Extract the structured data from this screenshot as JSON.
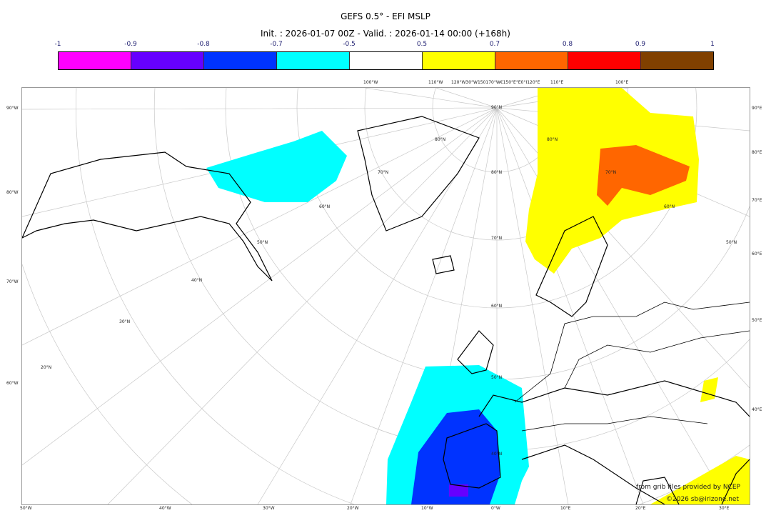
{
  "title": "GEFS 0.5° - EFI MSLP",
  "subtitle": "Init. : 2026-01-07 00Z - Valid. : 2026-01-14 00:00 (+168h)",
  "colorbar": {
    "ticks": [
      "-1",
      "-0.9",
      "-0.8",
      "-0.7",
      "-0.5",
      "0.5",
      "0.7",
      "0.8",
      "0.9",
      "1"
    ],
    "colors": [
      "#ff00ff",
      "#6600ff",
      "#0033ff",
      "#00ffff",
      "#ffffff",
      "#ffff00",
      "#ff6600",
      "#ff0000",
      "#804000"
    ]
  },
  "grid_labels": {
    "left": [
      "90°W",
      "80°W",
      "70°W",
      "60°W"
    ],
    "right": [
      "90°E",
      "80°E",
      "70°E",
      "60°E",
      "50°E",
      "40°E"
    ],
    "bottom": [
      "50°W",
      "40°W",
      "30°W",
      "20°W",
      "10°W",
      "0°W",
      "10°E",
      "20°E",
      "30°E"
    ],
    "top": [
      "100°W",
      "110°W",
      "120°W30°W150170°W€150°E°E0°I120°E",
      "110°E",
      "100°E"
    ],
    "latitudes": [
      "90°N",
      "80°N",
      "70°N",
      "60°N",
      "50°N",
      "40°N",
      "30°N",
      "20°N",
      "80°N",
      "70°N",
      "60°N",
      "50°N",
      "40°N",
      "80°N",
      "70°N",
      "60°N",
      "50°N"
    ]
  },
  "credits": {
    "line1": "from grib files provided by NCEP",
    "line2": "©2026 sb@irizone.net"
  }
}
